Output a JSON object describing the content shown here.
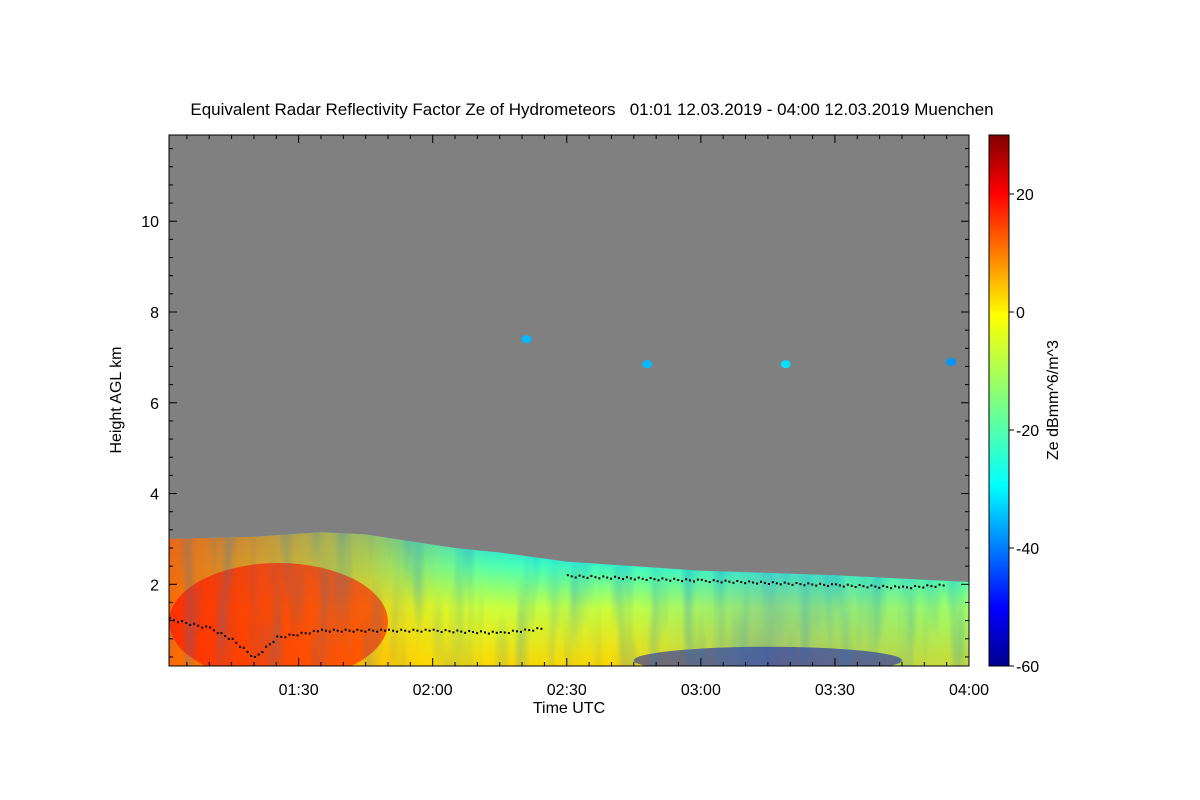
{
  "chart_data": {
    "type": "heatmap",
    "title": "Equivalent Radar Reflectivity Factor Ze of Hydrometeors   01:01 12.03.2019 - 04:00 12.03.2019 Muenchen",
    "xlabel": "Time UTC",
    "ylabel": "Height AGL km",
    "colorbar_label": "Ze dBmm^6/m^3",
    "x_range_utc": [
      "01:01",
      "04:00"
    ],
    "x_ticks": [
      "01:30",
      "02:00",
      "02:30",
      "03:00",
      "03:30",
      "04:00"
    ],
    "y_range_km": [
      0.2,
      11.9
    ],
    "y_ticks": [
      "2",
      "4",
      "6",
      "8",
      "10"
    ],
    "colorbar_range": [
      -60,
      30
    ],
    "colorbar_ticks": [
      "20",
      "0",
      "-20",
      "-40",
      "-60"
    ],
    "background_color": "#808080",
    "cloud_top_km": [
      {
        "t": "01:01",
        "h": 3.0
      },
      {
        "t": "01:20",
        "h": 3.05
      },
      {
        "t": "01:35",
        "h": 3.15
      },
      {
        "t": "01:45",
        "h": 3.1
      },
      {
        "t": "01:55",
        "h": 2.95
      },
      {
        "t": "02:05",
        "h": 2.8
      },
      {
        "t": "02:15",
        "h": 2.7
      },
      {
        "t": "02:30",
        "h": 2.5
      },
      {
        "t": "02:45",
        "h": 2.4
      },
      {
        "t": "03:00",
        "h": 2.3
      },
      {
        "t": "03:30",
        "h": 2.2
      },
      {
        "t": "04:00",
        "h": 2.05
      }
    ],
    "cloud_base_points": [
      {
        "t": "01:01",
        "h": 1.25
      },
      {
        "t": "01:10",
        "h": 1.05
      },
      {
        "t": "01:15",
        "h": 0.8
      },
      {
        "t": "01:20",
        "h": 0.4
      },
      {
        "t": "01:25",
        "h": 0.85
      },
      {
        "t": "01:35",
        "h": 1.0
      },
      {
        "t": "01:50",
        "h": 1.0
      },
      {
        "t": "02:00",
        "h": 1.0
      },
      {
        "t": "02:15",
        "h": 0.95
      },
      {
        "t": "02:25",
        "h": 1.05
      },
      {
        "t": "02:30",
        "h": 2.2
      },
      {
        "t": "03:00",
        "h": 2.1
      },
      {
        "t": "03:30",
        "h": 2.0
      },
      {
        "t": "03:45",
        "h": 1.95
      },
      {
        "t": "03:55",
        "h": 2.0
      }
    ],
    "isolated_echoes": [
      {
        "t": "02:21",
        "h": 7.4,
        "dbz": -35
      },
      {
        "t": "02:48",
        "h": 6.85,
        "dbz": -35
      },
      {
        "t": "03:19",
        "h": 6.85,
        "dbz": -32
      },
      {
        "t": "03:56",
        "h": 6.9,
        "dbz": -38
      }
    ],
    "features": [
      {
        "name": "strong low-level echo",
        "t_range": [
          "01:01",
          "01:50"
        ],
        "h_range_km": [
          0.2,
          2.8
        ],
        "dbz_max": 20
      },
      {
        "name": "weak echo near ground",
        "t_range": [
          "02:45",
          "03:45"
        ],
        "h_range_km": [
          0.2,
          0.8
        ],
        "dbz_min": -55
      }
    ]
  }
}
